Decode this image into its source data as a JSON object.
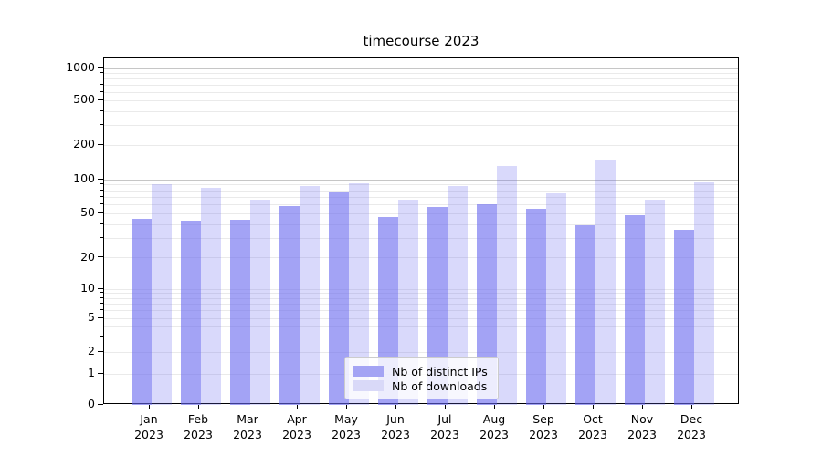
{
  "chart_data": {
    "type": "bar",
    "title": "timecourse 2023",
    "categories": [
      "Jan",
      "Feb",
      "Mar",
      "Apr",
      "May",
      "Jun",
      "Jul",
      "Aug",
      "Sep",
      "Oct",
      "Nov",
      "Dec"
    ],
    "category_year": "2023",
    "series": [
      {
        "name": "Nb of distinct IPs",
        "color": "#a4a4f4",
        "fill": "rgba(102,102,238,0.6)",
        "values": [
          45,
          43,
          44,
          58,
          78,
          47,
          57,
          61,
          55,
          39,
          48,
          36
        ]
      },
      {
        "name": "Nb of downloads",
        "color": "#d9d9f8",
        "fill": "rgba(102,102,238,0.25)",
        "values": [
          91,
          84,
          67,
          87,
          93,
          67,
          88,
          132,
          76,
          150,
          66,
          95
        ]
      }
    ],
    "xlabel": "",
    "ylabel": "",
    "yscale": "symlog",
    "yticks": [
      0,
      1,
      2,
      5,
      10,
      20,
      50,
      100,
      200,
      500,
      1000
    ],
    "ylim": [
      0,
      1250
    ],
    "grid": {
      "show": true,
      "minor_values": [
        3,
        4,
        6,
        7,
        8,
        9,
        30,
        40,
        60,
        70,
        80,
        90,
        300,
        400,
        600,
        700,
        800,
        900
      ],
      "emphasized_values": [
        100,
        1000
      ]
    },
    "legend_position": "bottom-center-inside"
  }
}
